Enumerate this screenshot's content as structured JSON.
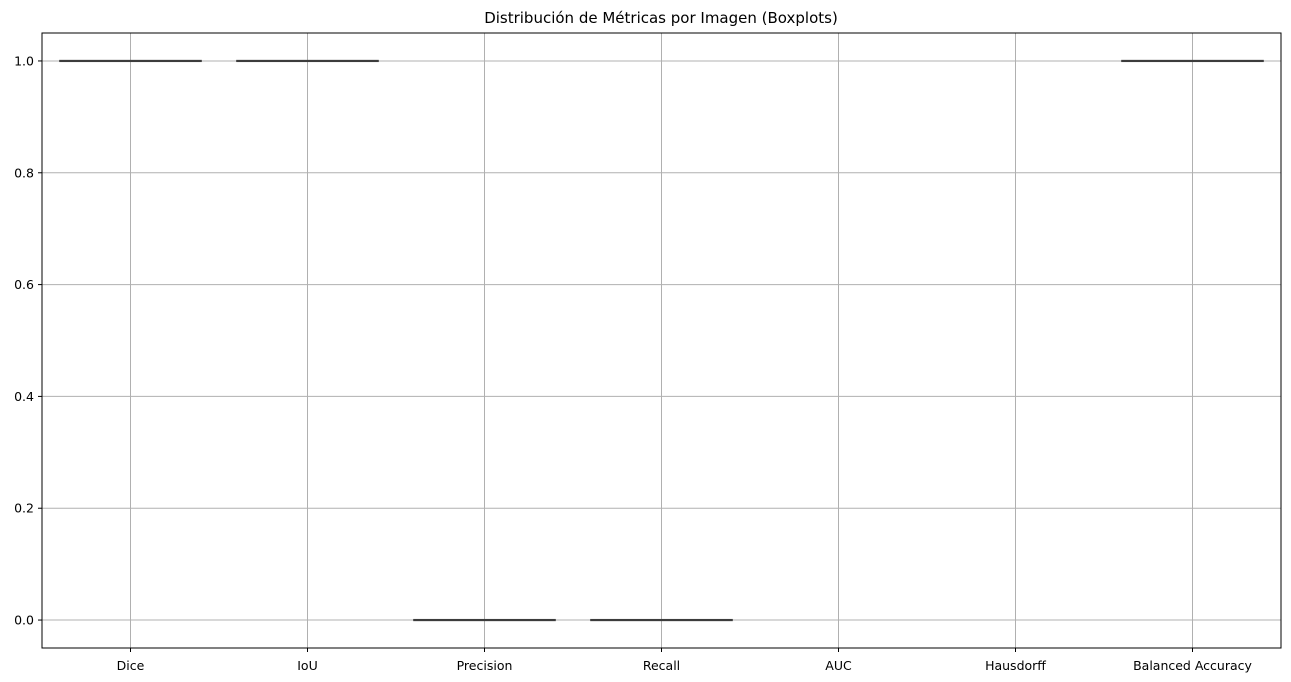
{
  "chart_data": {
    "type": "boxplot",
    "title": "Distribución de Métricas por Imagen (Boxplots)",
    "xlabel": "",
    "ylabel": "",
    "categories": [
      "Dice",
      "IoU",
      "Precision",
      "Recall",
      "AUC",
      "Hausdorff",
      "Balanced Accuracy"
    ],
    "values": [
      1.0,
      1.0,
      0.0,
      0.0,
      null,
      null,
      1.0
    ],
    "ylim": [
      -0.05,
      1.05
    ],
    "yticks": [
      0.0,
      0.2,
      0.4,
      0.6,
      0.8,
      1.0
    ],
    "ytick_labels": [
      "0.0",
      "0.2",
      "0.4",
      "0.6",
      "0.8",
      "1.0"
    ],
    "grid": true,
    "colors": {
      "box_line": "#3d3d3d",
      "grid": "#b0b0b0",
      "axis": "#000000"
    }
  }
}
